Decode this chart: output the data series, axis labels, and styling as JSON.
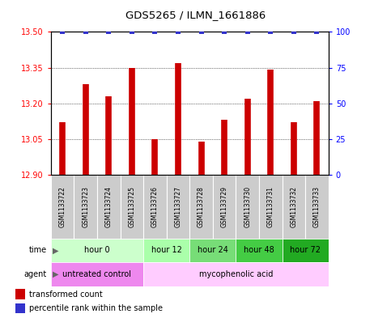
{
  "title": "GDS5265 / ILMN_1661886",
  "samples": [
    "GSM1133722",
    "GSM1133723",
    "GSM1133724",
    "GSM1133725",
    "GSM1133726",
    "GSM1133727",
    "GSM1133728",
    "GSM1133729",
    "GSM1133730",
    "GSM1133731",
    "GSM1133732",
    "GSM1133733"
  ],
  "bar_values": [
    13.12,
    13.28,
    13.23,
    13.35,
    13.05,
    13.37,
    13.04,
    13.13,
    13.22,
    13.34,
    13.12,
    13.21
  ],
  "percentile_values": [
    100,
    100,
    100,
    100,
    100,
    100,
    100,
    100,
    100,
    100,
    100,
    100
  ],
  "bar_color": "#cc0000",
  "percentile_color": "#3333cc",
  "ylim_left": [
    12.9,
    13.5
  ],
  "ylim_right": [
    0,
    100
  ],
  "yticks_left": [
    12.9,
    13.05,
    13.2,
    13.35,
    13.5
  ],
  "yticks_right": [
    0,
    25,
    50,
    75,
    100
  ],
  "time_groups": [
    {
      "label": "hour 0",
      "start": 0,
      "end": 4,
      "color": "#ccffcc"
    },
    {
      "label": "hour 12",
      "start": 4,
      "end": 6,
      "color": "#aaffaa"
    },
    {
      "label": "hour 24",
      "start": 6,
      "end": 8,
      "color": "#77dd77"
    },
    {
      "label": "hour 48",
      "start": 8,
      "end": 10,
      "color": "#44cc44"
    },
    {
      "label": "hour 72",
      "start": 10,
      "end": 12,
      "color": "#22aa22"
    }
  ],
  "agent_groups": [
    {
      "label": "untreated control",
      "start": 0,
      "end": 4,
      "color": "#ee88ee"
    },
    {
      "label": "mycophenolic acid",
      "start": 4,
      "end": 12,
      "color": "#ffccff"
    }
  ],
  "sample_box_color": "#cccccc",
  "legend_bar_label": "transformed count",
  "legend_pct_label": "percentile rank within the sample",
  "background_color": "#ffffff",
  "plot_bg_color": "#ffffff"
}
